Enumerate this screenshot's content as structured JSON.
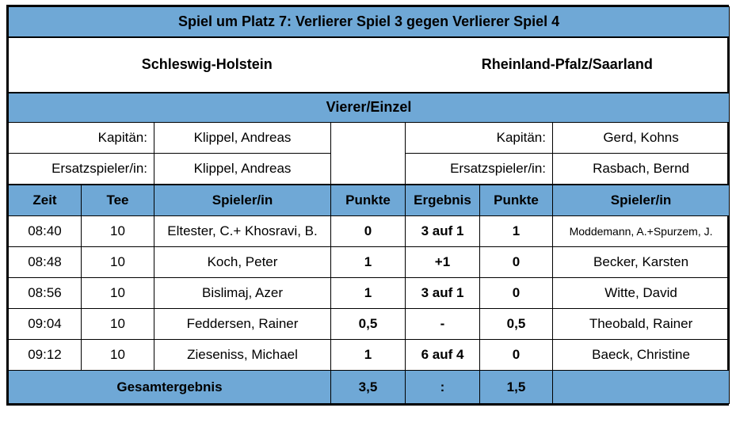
{
  "title": "Spiel um Platz 7: Verlierer Spiel 3 gegen Verlierer Spiel 4",
  "team_home": "Schleswig-Holstein",
  "team_away": "Rheinland-Pfalz/Saarland",
  "section": "Vierer/Einzel",
  "captain_label": "Kapitän:",
  "substitute_label": "Ersatzspieler/in:",
  "home_captain": "Klippel, Andreas",
  "home_substitute": "Klippel, Andreas",
  "away_captain": "Gerd, Kohns",
  "away_substitute": "Rasbach, Bernd",
  "headers": {
    "time": "Zeit",
    "tee": "Tee",
    "player_home": "Spieler/in",
    "points_home": "Punkte",
    "result": "Ergebnis",
    "points_away": "Punkte",
    "player_away": "Spieler/in"
  },
  "rows": [
    {
      "time": "08:40",
      "tee": "10",
      "player_home": "Eltester, C.+ Khosravi, B.",
      "points_home": "0",
      "result": "3 auf 1",
      "points_away": "1",
      "player_away": "Moddemann, A.+Spurzem, J."
    },
    {
      "time": "08:48",
      "tee": "10",
      "player_home": "Koch, Peter",
      "points_home": "1",
      "result": "+1",
      "points_away": "0",
      "player_away": "Becker, Karsten"
    },
    {
      "time": "08:56",
      "tee": "10",
      "player_home": "Bislimaj, Azer",
      "points_home": "1",
      "result": "3 auf 1",
      "points_away": "0",
      "player_away": "Witte, David"
    },
    {
      "time": "09:04",
      "tee": "10",
      "player_home": "Feddersen, Rainer",
      "points_home": "0,5",
      "result": "-",
      "points_away": "0,5",
      "player_away": "Theobald, Rainer"
    },
    {
      "time": "09:12",
      "tee": "10",
      "player_home": "Zieseniss, Michael",
      "points_home": "1",
      "result": "6 auf 4",
      "points_away": "0",
      "player_away": "Baeck, Christine"
    }
  ],
  "total": {
    "label": "Gesamtergebnis",
    "home": "3,5",
    "separator": ":",
    "away": "1,5"
  },
  "colors": {
    "header_blue": "#6fa8d6"
  }
}
